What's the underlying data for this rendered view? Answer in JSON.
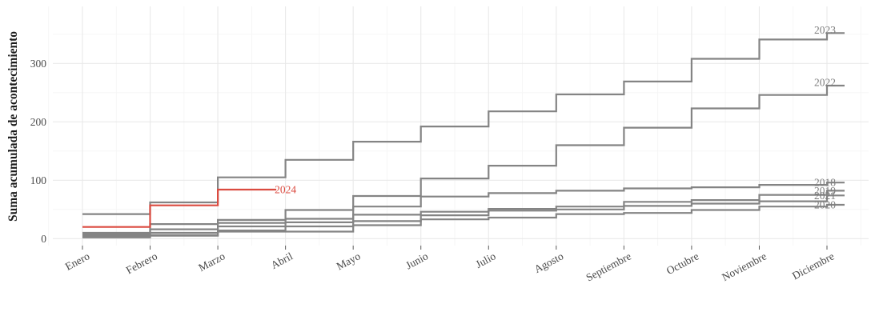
{
  "chart_data": {
    "type": "line",
    "subtype": "step-cumulative",
    "title": "",
    "xlabel": "",
    "ylabel": "Suma acumulada de acontecimiento",
    "categories": [
      "Enero",
      "Febrero",
      "Marzo",
      "Abril",
      "Mayo",
      "Junio",
      "Julio",
      "Agosto",
      "Septiembre",
      "Octubre",
      "Noviembre",
      "Diciembre"
    ],
    "yticks": [
      0,
      100,
      200,
      300
    ],
    "ylim": [
      0,
      395
    ],
    "grid": "major and minor gridlines, light gray on white",
    "legend_position": "labels at end of each line",
    "series": [
      {
        "name": "2018",
        "color": "#848484",
        "values": [
          10,
          16,
          27,
          34,
          55,
          72,
          78,
          82,
          86,
          88,
          92,
          96
        ]
      },
      {
        "name": "2019",
        "color": "#848484",
        "values": [
          6,
          10,
          21,
          28,
          41,
          46,
          51,
          55,
          63,
          66,
          75,
          82
        ]
      },
      {
        "name": "2020",
        "color": "#848484",
        "values": [
          2,
          5,
          12,
          12,
          23,
          33,
          36,
          42,
          44,
          49,
          55,
          58
        ]
      },
      {
        "name": "2021",
        "color": "#848484",
        "values": [
          3,
          6,
          14,
          21,
          30,
          40,
          48,
          50,
          56,
          60,
          64,
          74
        ]
      },
      {
        "name": "2022",
        "color": "#848484",
        "values": [
          8,
          25,
          32,
          49,
          73,
          103,
          125,
          160,
          190,
          223,
          246,
          262
        ]
      },
      {
        "name": "2023",
        "color": "#848484",
        "values": [
          42,
          62,
          105,
          135,
          166,
          192,
          218,
          247,
          269,
          308,
          341,
          352
        ]
      },
      {
        "name": "2024",
        "color": "#DB4B40",
        "values": [
          20,
          57,
          84
        ]
      }
    ],
    "colors": {
      "line_gray": "#848484",
      "line_red": "#DB4B40",
      "grid_major": "#e9e9e9",
      "grid_minor": "#f5f5f5",
      "axis_text": "#4a4a4a",
      "end_label_gray": "#7d7d7d"
    }
  }
}
